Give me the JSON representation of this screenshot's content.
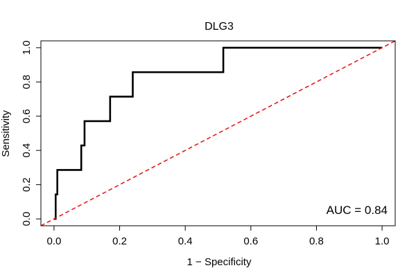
{
  "chart_data": {
    "type": "line",
    "title": "DLG3",
    "xlabel": "1 − Specificity",
    "ylabel": "Sensitivity",
    "xlim": [
      -0.04,
      1.04
    ],
    "ylim": [
      -0.04,
      1.04
    ],
    "xticks": [
      0.0,
      0.2,
      0.4,
      0.6,
      0.8,
      1.0
    ],
    "yticks": [
      0.0,
      0.2,
      0.4,
      0.6,
      0.8,
      1.0
    ],
    "tick_labels": [
      "0.0",
      "0.2",
      "0.4",
      "0.6",
      "0.8",
      "1.0"
    ],
    "grid": false,
    "annotation": "AUC = 0.84",
    "series": [
      {
        "color": "#000000",
        "style": "solid",
        "x": [
          0.0,
          0.005,
          0.005,
          0.01,
          0.01,
          0.083,
          0.083,
          0.093,
          0.093,
          0.171,
          0.171,
          0.24,
          0.24,
          0.516,
          0.516,
          1.0
        ],
        "y": [
          0.0,
          0.0,
          0.143,
          0.143,
          0.286,
          0.286,
          0.429,
          0.429,
          0.571,
          0.571,
          0.714,
          0.714,
          0.857,
          0.857,
          1.0,
          1.0
        ]
      },
      {
        "color": "#e31a1c",
        "style": "dashed",
        "x": [
          -0.04,
          1.04
        ],
        "y": [
          -0.04,
          1.04
        ]
      }
    ]
  }
}
